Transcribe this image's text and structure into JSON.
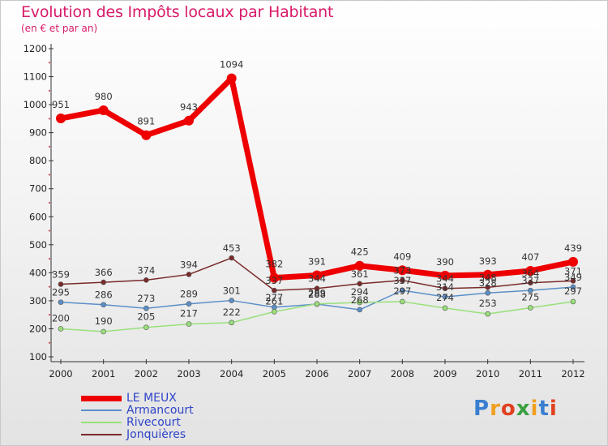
{
  "header": {
    "title": "Evolution des Impôts locaux par Habitant",
    "subtitle": "(en € et par an)"
  },
  "logo": {
    "text": "Proxiti"
  },
  "chart_data": {
    "type": "line",
    "title": "Evolution des Impôts locaux par Habitant",
    "subtitle": "(en € et par an)",
    "xlabel": "",
    "ylabel": "",
    "ylim": [
      100,
      1200
    ],
    "yticks": [
      100,
      200,
      300,
      400,
      500,
      600,
      700,
      800,
      900,
      1000,
      1100,
      1200
    ],
    "x": [
      2000,
      2001,
      2002,
      2003,
      2004,
      2005,
      2006,
      2007,
      2008,
      2009,
      2010,
      2011,
      2012
    ],
    "legend_position": "bottom-left",
    "series": [
      {
        "name": "LE MEUX",
        "color": "#ee0000",
        "values": [
          951,
          980,
          891,
          943,
          1094,
          382,
          391,
          425,
          409,
          390,
          393,
          407,
          439
        ]
      },
      {
        "name": "Armancourt",
        "color": "#5a8fc8",
        "values": [
          295,
          286,
          273,
          289,
          301,
          277,
          288,
          268,
          337,
          314,
          328,
          337,
          349
        ]
      },
      {
        "name": "Rivecourt",
        "color": "#99e07a",
        "values": [
          200,
          190,
          205,
          217,
          222,
          261,
          289,
          294,
          297,
          274,
          253,
          275,
          297
        ]
      },
      {
        "name": "Jonquières",
        "color": "#7a2a2a",
        "values": [
          359,
          366,
          374,
          394,
          453,
          337,
          344,
          361,
          373,
          344,
          348,
          364,
          371
        ]
      }
    ]
  }
}
